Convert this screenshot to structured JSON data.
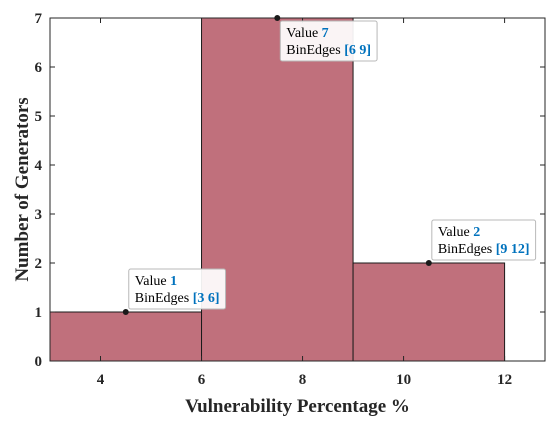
{
  "chart_data": {
    "type": "bar",
    "subtype": "histogram",
    "title": "",
    "xlabel": "Vulnerability Percentage %",
    "ylabel": "Number of Generators",
    "xlim": [
      3,
      12.8
    ],
    "ylim": [
      0,
      7
    ],
    "xticks": [
      4,
      6,
      8,
      10,
      12
    ],
    "yticks": [
      0,
      1,
      2,
      3,
      4,
      5,
      6,
      7
    ],
    "grid": false,
    "bins": [
      {
        "edges": [
          3,
          6
        ],
        "value": 1
      },
      {
        "edges": [
          6,
          9
        ],
        "value": 7
      },
      {
        "edges": [
          9,
          12
        ],
        "value": 2
      }
    ],
    "colors": {
      "bar_fill": "#c0707c",
      "bar_edge": "#1a1a1a",
      "value_text": "#0072bd"
    },
    "datatips": [
      {
        "value_label": "Value",
        "value": "1",
        "edges_label": "BinEdges",
        "edges": "[3 6]",
        "anchor_x": 4.5,
        "anchor_y": 1
      },
      {
        "value_label": "Value",
        "value": "7",
        "edges_label": "BinEdges",
        "edges": "[6 9]",
        "anchor_x": 7.5,
        "anchor_y": 7
      },
      {
        "value_label": "Value",
        "value": "2",
        "edges_label": "BinEdges",
        "edges": "[9 12]",
        "anchor_x": 10.5,
        "anchor_y": 2
      }
    ]
  }
}
